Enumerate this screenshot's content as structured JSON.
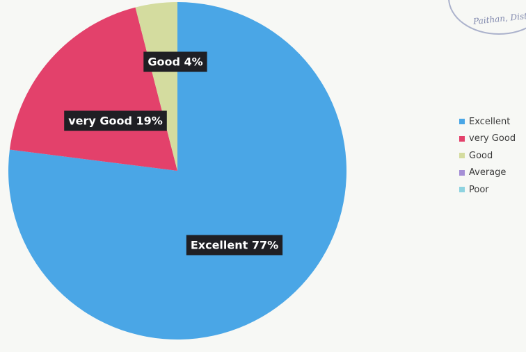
{
  "chart_data": {
    "type": "pie",
    "title": "",
    "categories": [
      "Excellent",
      "very Good",
      "Good",
      "Average",
      "Poor"
    ],
    "values": [
      77,
      19,
      4,
      0,
      0
    ],
    "data_labels": [
      "Excellent  77%",
      "very Good 19%",
      "Good  4%",
      "",
      ""
    ],
    "colors": [
      "#4aa6e6",
      "#e3416b",
      "#d4dc9f",
      "#a58fd6",
      "#8ed3e0"
    ],
    "legend": {
      "placement": "right",
      "entries": [
        "Excellent",
        "very Good",
        "Good",
        "Average",
        "Poor"
      ]
    }
  },
  "stamp": {
    "text": "Paithan, Dist"
  }
}
